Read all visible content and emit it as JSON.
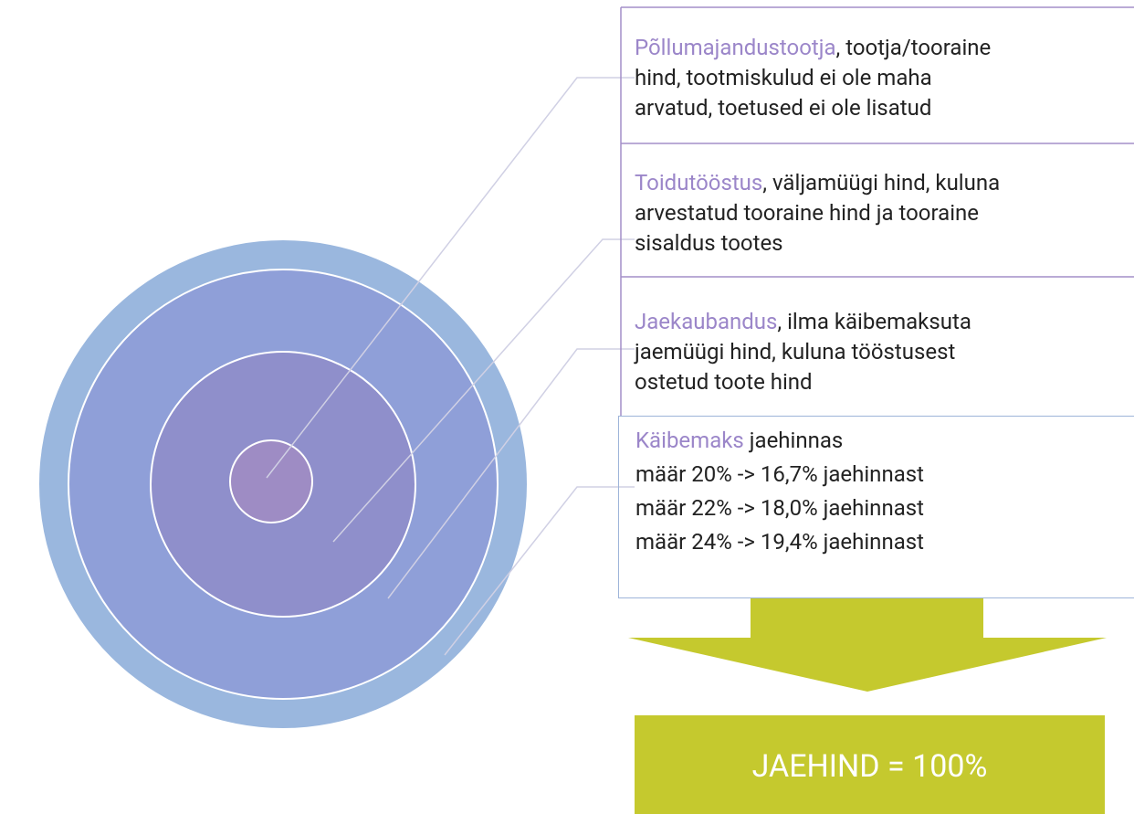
{
  "layers": [
    {
      "highlight": "Põllumajandustootja",
      "lines": [
        ", tootja/tooraine",
        "hind, tootmiskulud ei ole maha",
        "arvatud, toetused ei ole lisatud"
      ]
    },
    {
      "highlight": "Toidutööstus",
      "lines": [
        ", väljamüügi hind, kuluna",
        "arvestatud tooraine hind ja tooraine",
        "sisaldus tootes"
      ]
    },
    {
      "highlight": "Jaekaubandus",
      "lines": [
        ", ilma käibemaksuta",
        "jaemüügi hind, kuluna tööstusest",
        "ostetud toote hind"
      ]
    }
  ],
  "vat": {
    "highlight": "Käibemaks",
    "rest": " jaehinnas",
    "lines": [
      "määr 20% -> 16,7% jaehinnast",
      "määr 22% -> 18,0% jaehinnast",
      "määr 24% -> 19,4% jaehinnast"
    ]
  },
  "result": "JAEHIND = 100%"
}
